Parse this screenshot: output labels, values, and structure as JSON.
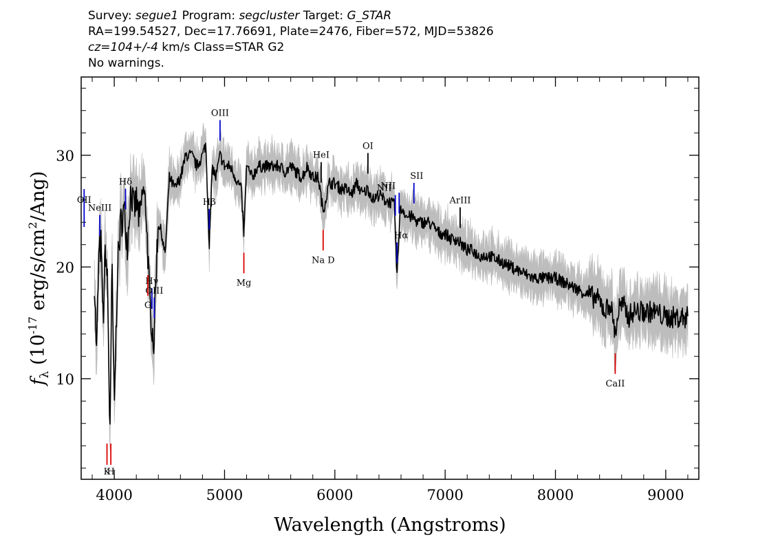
{
  "header": {
    "line1_a": "Survey: ",
    "line1_survey": "segue1",
    "line1_b": " Program: ",
    "line1_program": "segcluster",
    "line1_c": " Target: ",
    "line1_target": "G_STAR",
    "line2": "RA=199.54527, Dec=17.76691, Plate=2476, Fiber=572, MJD=53826",
    "line3_cz": "cz=104+/-4",
    "line3_rest": " km/s Class=STAR G2",
    "line4": "No warnings."
  },
  "colors": {
    "flux": "#000000",
    "error_band": "#bdbdbd",
    "emission_line": "#0000cc",
    "absorption_line": "#dd0000",
    "other_line": "#000000"
  },
  "chart_data": {
    "type": "line",
    "xlabel": "Wavelength (Angstroms)",
    "ylabel_symbol": "f",
    "ylabel_sub": "λ",
    "ylabel_a": " (10",
    "ylabel_exp1": "-17",
    "ylabel_b": " erg/s/cm",
    "ylabel_exp2": "2",
    "ylabel_c": "/Ang)",
    "xlim": [
      3700,
      9300
    ],
    "ylim": [
      1,
      37
    ],
    "xticks": [
      4000,
      5000,
      6000,
      7000,
      8000,
      9000
    ],
    "xtick_labels": [
      "4000",
      "5000",
      "6000",
      "7000",
      "8000",
      "9000"
    ],
    "yticks": [
      10,
      20,
      30
    ],
    "ytick_labels": [
      "10",
      "20",
      "30"
    ],
    "series": [
      {
        "x": [
          3820,
          3840,
          3860,
          3880,
          3900,
          3920,
          3940,
          3960,
          3980,
          4000,
          4030,
          4060,
          4090,
          4120,
          4150,
          4180,
          4200,
          4230,
          4260,
          4290,
          4320,
          4340,
          4360,
          4380,
          4400,
          4430,
          4460,
          4500,
          4550,
          4600,
          4650,
          4700,
          4750,
          4800,
          4830,
          4861,
          4890,
          4920,
          4960,
          5000,
          5050,
          5100,
          5150,
          5175,
          5200,
          5250,
          5300,
          5350,
          5400,
          5450,
          5500,
          5550,
          5600,
          5650,
          5700,
          5750,
          5800,
          5850,
          5893,
          5950,
          6000,
          6050,
          6100,
          6150,
          6200,
          6250,
          6300,
          6350,
          6400,
          6450,
          6500,
          6540,
          6563,
          6590,
          6620,
          6650,
          6700,
          6750,
          6800,
          6850,
          6900,
          6950,
          7000,
          7050,
          7100,
          7150,
          7200,
          7250,
          7300,
          7400,
          7500,
          7600,
          7700,
          7800,
          7900,
          8000,
          8100,
          8200,
          8300,
          8400,
          8450,
          8498,
          8542,
          8580,
          8620,
          8662,
          8700,
          8800,
          8900,
          9000,
          9100,
          9200
        ],
        "y": [
          19,
          12,
          21,
          22,
          15,
          22,
          18,
          5,
          20,
          7,
          20,
          24,
          25,
          22,
          27,
          25,
          26,
          24,
          27,
          25,
          17,
          15,
          13,
          20,
          24,
          23,
          21,
          28,
          27,
          28,
          30,
          30,
          29,
          30,
          31,
          22,
          29,
          28,
          30,
          29,
          29,
          28,
          27,
          23,
          29,
          28,
          29,
          29,
          29,
          29,
          29,
          28.5,
          29,
          28.5,
          28,
          29,
          28,
          28,
          25,
          27.5,
          27.5,
          27,
          27,
          26.5,
          27.5,
          26.5,
          27,
          26,
          26.5,
          26,
          25.8,
          25.5,
          19,
          25,
          25.2,
          24.5,
          24.5,
          24,
          24,
          24,
          23.5,
          23,
          23,
          22.5,
          22.5,
          22,
          21.5,
          21.5,
          21,
          21,
          20.5,
          20,
          19.5,
          19,
          19,
          19,
          18.5,
          18,
          17.5,
          17,
          16,
          16.8,
          14,
          16.5,
          16.5,
          15.5,
          16,
          16,
          16,
          15.5,
          15.5,
          15.5
        ]
      }
    ],
    "lines": [
      {
        "label": "OII",
        "x": 3727,
        "kind": "emission"
      },
      {
        "label": "NeIII",
        "x": 3869,
        "kind": "emission"
      },
      {
        "label": "Hδ",
        "x": 4102,
        "kind": "emission"
      },
      {
        "label": "Hγ",
        "x": 4341,
        "kind": "emission"
      },
      {
        "label": "OIII",
        "x": 4363,
        "kind": "emission"
      },
      {
        "label": "Hβ",
        "x": 4861,
        "kind": "emission"
      },
      {
        "label": "OIII",
        "x": 4959,
        "kind": "emission"
      },
      {
        "label": "HeI",
        "x": 5876,
        "kind": "emission"
      },
      {
        "label": "OI",
        "x": 6300,
        "kind": "emission"
      },
      {
        "label": "NII",
        "x": 6548,
        "kind": "emission"
      },
      {
        "label": "Hα",
        "x": 6563,
        "kind": "emission"
      },
      {
        "label": "NII",
        "x": 6583,
        "kind": "emission"
      },
      {
        "label": "SII",
        "x": 6717,
        "kind": "emission"
      },
      {
        "label": "ArIII",
        "x": 7136,
        "kind": "emission"
      },
      {
        "label": "K",
        "x": 3934,
        "kind": "absorption"
      },
      {
        "label": "H",
        "x": 3969,
        "kind": "absorption"
      },
      {
        "label": "G",
        "x": 4305,
        "kind": "absorption"
      },
      {
        "label": "Mg",
        "x": 5175,
        "kind": "absorption"
      },
      {
        "label": "Na D",
        "x": 5894,
        "kind": "absorption"
      },
      {
        "label": "CaII",
        "x": 8542,
        "kind": "absorption"
      }
    ]
  }
}
